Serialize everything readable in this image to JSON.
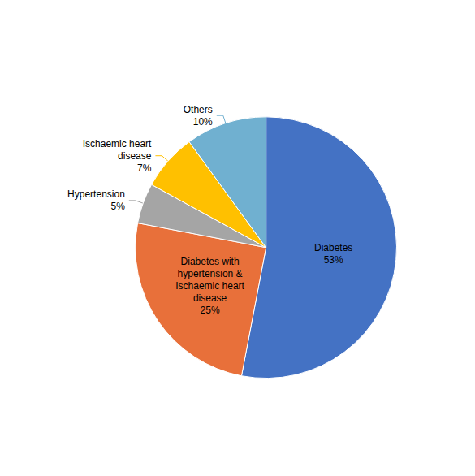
{
  "chart_data": {
    "type": "pie",
    "categories": [
      "Diabetes\n53%",
      "Diabetes with\nhypertension &\nIschaemic heart\ndisease\n25%",
      "Hypertension\n5%",
      "Ischaemic heart\ndisease\n7%",
      "Others\n10%"
    ],
    "values": [
      53,
      25,
      5,
      7,
      10
    ],
    "colors": [
      "#4472C4",
      "#E8703A",
      "#A5A5A5",
      "#FFC000",
      "#70B0D0"
    ],
    "legend": false
  }
}
